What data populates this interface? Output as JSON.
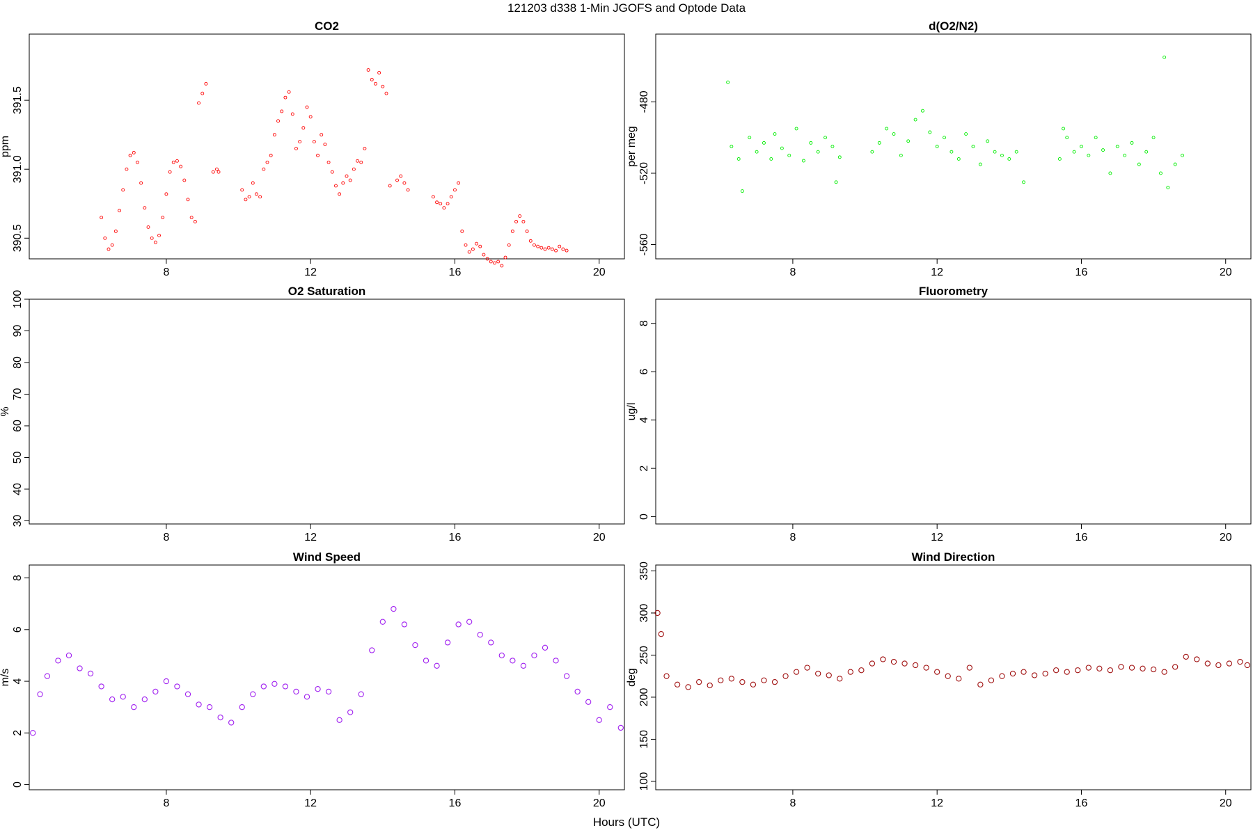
{
  "figure": {
    "title": "121203   d338   1-Min  JGOFS and Optode Data",
    "xlabel": "Hours (UTC)"
  },
  "chart_data": [
    {
      "id": "co2",
      "type": "scatter",
      "title": "CO2",
      "ylabel": "ppm",
      "color": "#ff0000",
      "marker_size": "small",
      "xlim": [
        4.2,
        20.7
      ],
      "ylim": [
        390.35,
        391.98
      ],
      "xticks": [
        8,
        12,
        16,
        20
      ],
      "yticks": [
        390.5,
        391.0,
        391.5
      ],
      "ytick_labels": [
        "390.5",
        "391.0",
        "391.5"
      ],
      "x": [
        6.2,
        6.3,
        6.4,
        6.5,
        6.6,
        6.7,
        6.8,
        6.9,
        7.0,
        7.1,
        7.2,
        7.3,
        7.4,
        7.5,
        7.6,
        7.7,
        7.8,
        7.9,
        8.0,
        8.1,
        8.2,
        8.3,
        8.4,
        8.5,
        8.6,
        8.7,
        8.8,
        8.9,
        9.0,
        9.1,
        9.3,
        9.4,
        9.45,
        10.1,
        10.2,
        10.3,
        10.4,
        10.5,
        10.6,
        10.7,
        10.8,
        10.9,
        11.0,
        11.1,
        11.2,
        11.3,
        11.4,
        11.5,
        11.6,
        11.7,
        11.8,
        11.9,
        12.0,
        12.1,
        12.2,
        12.3,
        12.4,
        12.5,
        12.6,
        12.7,
        12.8,
        12.9,
        13.0,
        13.1,
        13.2,
        13.3,
        13.4,
        13.5,
        13.6,
        13.7,
        13.8,
        13.9,
        14.0,
        14.1,
        14.2,
        14.4,
        14.5,
        14.6,
        14.7,
        15.4,
        15.5,
        15.6,
        15.7,
        15.8,
        15.9,
        16.0,
        16.1,
        16.2,
        16.3,
        16.4,
        16.5,
        16.6,
        16.7,
        16.8,
        16.9,
        17.0,
        17.1,
        17.2,
        17.3,
        17.4,
        17.5,
        17.6,
        17.7,
        17.8,
        17.9,
        18.0,
        18.1,
        18.2,
        18.3,
        18.4,
        18.5,
        18.6,
        18.7,
        18.8,
        18.9,
        19.0,
        19.1
      ],
      "y": [
        390.65,
        390.5,
        390.42,
        390.45,
        390.55,
        390.7,
        390.85,
        391.0,
        391.1,
        391.12,
        391.05,
        390.9,
        390.72,
        390.58,
        390.5,
        390.47,
        390.52,
        390.65,
        390.82,
        390.98,
        391.05,
        391.06,
        391.02,
        390.92,
        390.78,
        390.65,
        390.62,
        391.48,
        391.55,
        391.62,
        390.98,
        391.0,
        390.98,
        390.85,
        390.78,
        390.8,
        390.9,
        390.82,
        390.8,
        391.0,
        391.05,
        391.1,
        391.25,
        391.35,
        391.42,
        391.52,
        391.56,
        391.4,
        391.15,
        391.2,
        391.3,
        391.45,
        391.38,
        391.2,
        391.1,
        391.25,
        391.18,
        391.05,
        390.98,
        390.88,
        390.82,
        390.9,
        390.95,
        390.92,
        391.0,
        391.06,
        391.05,
        391.15,
        391.72,
        391.65,
        391.62,
        391.7,
        391.6,
        391.55,
        390.88,
        390.92,
        390.95,
        390.9,
        390.85,
        390.8,
        390.76,
        390.75,
        390.72,
        390.75,
        390.8,
        390.85,
        390.9,
        390.55,
        390.45,
        390.4,
        390.42,
        390.46,
        390.44,
        390.38,
        390.35,
        390.33,
        390.32,
        390.33,
        390.3,
        390.36,
        390.45,
        390.55,
        390.62,
        390.66,
        390.62,
        390.55,
        390.48,
        390.45,
        390.44,
        390.43,
        390.42,
        390.43,
        390.42,
        390.41,
        390.44,
        390.42,
        390.41
      ]
    },
    {
      "id": "do2n2",
      "type": "scatter",
      "title": "d(O2/N2)",
      "ylabel": "per meg",
      "color": "#00ee00",
      "marker_size": "small",
      "xlim": [
        4.2,
        20.7
      ],
      "ylim": [
        -568,
        -442
      ],
      "xticks": [
        8,
        12,
        16,
        20
      ],
      "yticks": [
        -560,
        -520,
        -480
      ],
      "ytick_labels": [
        "-560",
        "-520",
        "-480"
      ],
      "x": [
        6.2,
        6.3,
        6.5,
        6.6,
        6.8,
        7.0,
        7.2,
        7.4,
        7.5,
        7.7,
        7.9,
        8.1,
        8.3,
        8.5,
        8.7,
        8.9,
        9.1,
        9.2,
        9.3,
        10.2,
        10.4,
        10.6,
        10.8,
        11.0,
        11.2,
        11.4,
        11.6,
        11.8,
        12.0,
        12.2,
        12.4,
        12.6,
        12.8,
        13.0,
        13.2,
        13.4,
        13.6,
        13.8,
        14.0,
        14.2,
        14.4,
        15.4,
        15.5,
        15.6,
        15.8,
        16.0,
        16.2,
        16.4,
        16.6,
        16.8,
        17.0,
        17.2,
        17.4,
        17.6,
        17.8,
        18.0,
        18.2,
        18.3,
        18.4,
        18.6,
        18.8
      ],
      "y": [
        -469,
        -505,
        -512,
        -530,
        -500,
        -508,
        -503,
        -512,
        -498,
        -506,
        -510,
        -495,
        -513,
        -503,
        -508,
        -500,
        -505,
        -525,
        -511,
        -508,
        -503,
        -495,
        -498,
        -510,
        -502,
        -490,
        -485,
        -497,
        -505,
        -500,
        -508,
        -512,
        -498,
        -505,
        -515,
        -502,
        -508,
        -510,
        -512,
        -508,
        -525,
        -512,
        -495,
        -500,
        -508,
        -505,
        -510,
        -500,
        -507,
        -520,
        -505,
        -510,
        -503,
        -515,
        -508,
        -500,
        -520,
        -455,
        -528,
        -515,
        -510
      ]
    },
    {
      "id": "o2sat",
      "type": "scatter",
      "title": "O2 Saturation",
      "ylabel": "%",
      "color": "#0000ff",
      "xlim": [
        4.2,
        20.7
      ],
      "ylim": [
        29,
        100
      ],
      "xticks": [
        8,
        12,
        16,
        20
      ],
      "yticks": [
        30,
        40,
        50,
        60,
        70,
        80,
        90,
        100
      ],
      "ytick_labels": [
        "30",
        "40",
        "50",
        "60",
        "70",
        "80",
        "90",
        "100"
      ],
      "x": [],
      "y": []
    },
    {
      "id": "fluor",
      "type": "scatter",
      "title": "Fluorometry",
      "ylabel": "ug/l",
      "color": "#008000",
      "xlim": [
        4.2,
        20.7
      ],
      "ylim": [
        -0.3,
        9.0
      ],
      "xticks": [
        8,
        12,
        16,
        20
      ],
      "yticks": [
        0,
        2,
        4,
        6,
        8
      ],
      "ytick_labels": [
        "0",
        "2",
        "4",
        "6",
        "8"
      ],
      "x": [],
      "y": []
    },
    {
      "id": "wspd",
      "type": "scatter",
      "title": "Wind Speed",
      "ylabel": "m/s",
      "color": "#a020f0",
      "marker_size": "large",
      "xlim": [
        4.2,
        20.7
      ],
      "ylim": [
        -0.2,
        8.5
      ],
      "xticks": [
        8,
        12,
        16,
        20
      ],
      "yticks": [
        0,
        2,
        4,
        6,
        8
      ],
      "ytick_labels": [
        "0",
        "2",
        "4",
        "6",
        "8"
      ],
      "x": [
        4.3,
        4.5,
        4.7,
        5.0,
        5.3,
        5.6,
        5.9,
        6.2,
        6.5,
        6.8,
        7.1,
        7.4,
        7.7,
        8.0,
        8.3,
        8.6,
        8.9,
        9.2,
        9.5,
        9.8,
        10.1,
        10.4,
        10.7,
        11.0,
        11.3,
        11.6,
        11.9,
        12.2,
        12.5,
        12.8,
        13.1,
        13.4,
        13.7,
        14.0,
        14.3,
        14.6,
        14.9,
        15.2,
        15.5,
        15.8,
        16.1,
        16.4,
        16.7,
        17.0,
        17.3,
        17.6,
        17.9,
        18.2,
        18.5,
        18.8,
        19.1,
        19.4,
        19.7,
        20.0,
        20.3,
        20.6
      ],
      "y": [
        2.0,
        3.5,
        4.2,
        4.8,
        5.0,
        4.5,
        4.3,
        3.8,
        3.3,
        3.4,
        3.0,
        3.3,
        3.6,
        4.0,
        3.8,
        3.5,
        3.1,
        3.0,
        2.6,
        2.4,
        3.0,
        3.5,
        3.8,
        3.9,
        3.8,
        3.6,
        3.4,
        3.7,
        3.6,
        2.5,
        2.8,
        3.5,
        5.2,
        6.3,
        6.8,
        6.2,
        5.4,
        4.8,
        4.6,
        5.5,
        6.2,
        6.3,
        5.8,
        5.5,
        5.0,
        4.8,
        4.6,
        5.0,
        5.3,
        4.8,
        4.2,
        3.6,
        3.2,
        2.5,
        3.0,
        2.2
      ]
    },
    {
      "id": "wdir",
      "type": "scatter",
      "title": "Wind Direction",
      "ylabel": "deg",
      "color": "#a01010",
      "marker_size": "large",
      "xlim": [
        4.2,
        20.7
      ],
      "ylim": [
        90,
        357
      ],
      "xticks": [
        8,
        12,
        16,
        20
      ],
      "yticks": [
        100,
        150,
        200,
        250,
        300,
        350
      ],
      "ytick_labels": [
        "100",
        "150",
        "200",
        "250",
        "300",
        "350"
      ],
      "x": [
        4.25,
        4.35,
        4.5,
        4.8,
        5.1,
        5.4,
        5.7,
        6.0,
        6.3,
        6.6,
        6.9,
        7.2,
        7.5,
        7.8,
        8.1,
        8.4,
        8.7,
        9.0,
        9.3,
        9.6,
        9.9,
        10.2,
        10.5,
        10.8,
        11.1,
        11.4,
        11.7,
        12.0,
        12.3,
        12.6,
        12.9,
        13.2,
        13.5,
        13.8,
        14.1,
        14.4,
        14.7,
        15.0,
        15.3,
        15.6,
        15.9,
        16.2,
        16.5,
        16.8,
        17.1,
        17.4,
        17.7,
        18.0,
        18.3,
        18.6,
        18.9,
        19.2,
        19.5,
        19.8,
        20.1,
        20.4,
        20.6
      ],
      "y": [
        300,
        275,
        225,
        215,
        212,
        218,
        214,
        220,
        222,
        218,
        215,
        220,
        218,
        225,
        230,
        235,
        228,
        226,
        222,
        230,
        232,
        240,
        245,
        242,
        240,
        238,
        235,
        230,
        225,
        222,
        235,
        215,
        220,
        225,
        228,
        230,
        226,
        228,
        232,
        230,
        232,
        235,
        234,
        232,
        236,
        235,
        234,
        233,
        230,
        236,
        248,
        245,
        240,
        238,
        240,
        242,
        238
      ]
    }
  ]
}
